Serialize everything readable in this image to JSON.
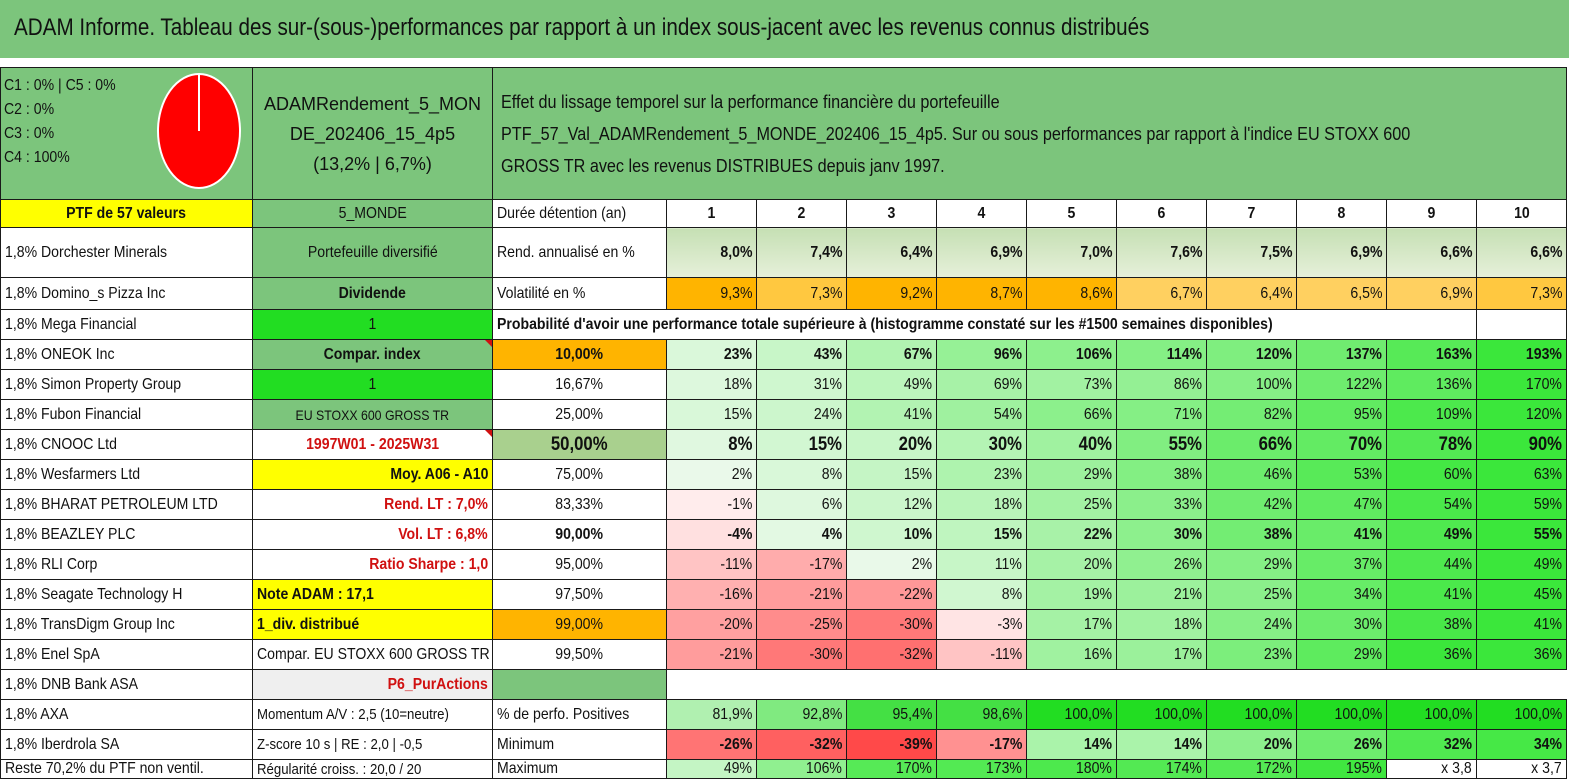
{
  "title": "ADAM Informe. Tableau des sur-(sous-)performances par rapport à un index sous-jacent avec les revenus connus distribués",
  "pie": {
    "lines": [
      "C1 : 0% | C5 : 0%",
      "C2 : 0%",
      "C3 : 0%",
      "C4 : 100%"
    ],
    "color": "#ff0000"
  },
  "portfolio": {
    "name_line1": "ADAMRendement_5_MON",
    "name_line2": "DE_202406_15_4p5",
    "name_line3": "(13,2% | 6,7%)"
  },
  "description": {
    "line1": "Effet du lissage temporel sur la performance financière du portefeuille",
    "line2": "PTF_57_Val_ADAMRendement_5_MONDE_202406_15_4p5. Sur ou sous performances par rapport à l'indice EU STOXX 600",
    "line3": "GROSS TR avec les revenus DISTRIBUES depuis janv 1997."
  },
  "header": {
    "ptf": "PTF de 57 valeurs",
    "zone": "5_MONDE",
    "duration_label": "Durée détention (an)",
    "years": [
      "1",
      "2",
      "3",
      "4",
      "5",
      "6",
      "7",
      "8",
      "9",
      "10"
    ]
  },
  "holdings": [
    "1,8% Dorchester Minerals",
    "1,8% Domino_s Pizza Inc",
    "1,8% Mega Financial",
    "1,8% ONEOK Inc",
    "1,8% Simon Property Group",
    "1,8% Fubon Financial",
    "1,8% CNOOC Ltd",
    "1,8% Wesfarmers Ltd",
    "1,8% BHARAT PETROLEUM LTD",
    "1,8% BEAZLEY PLC",
    "1,8% RLI Corp",
    "1,8% Seagate Technology H",
    "1,8% TransDigm Group Inc",
    "1,8% Enel SpA",
    "1,8% DNB Bank ASA",
    "1,8% AXA",
    "1,8% Iberdrola SA",
    "Reste 70,2% du PTF non ventil."
  ],
  "info": [
    "Portefeuille diversifié",
    "Dividende",
    "1",
    "Compar. index",
    "1",
    "EU STOXX 600 GROSS TR",
    "1997W01 - 2025W31",
    "Moy. A06 - A10",
    "Rend. LT : 7,0%",
    "Vol. LT : 6,8%",
    "Ratio Sharpe : 1,0",
    "Note ADAM : 17,1",
    "1_div. distribué",
    "Compar. EU STOXX 600 GROSS TR",
    "P6_PurActions",
    "Momentum A/V : 2,5 (10=neutre)",
    "Z-score 10 s | RE : 2,0 | -0,5",
    "Régularité croiss. : 20,0 / 20"
  ],
  "rend": {
    "label": "Rend. annualisé en %",
    "values": [
      "8,0%",
      "7,4%",
      "6,4%",
      "6,9%",
      "7,0%",
      "7,6%",
      "7,5%",
      "6,9%",
      "6,6%",
      "6,6%"
    ]
  },
  "vol": {
    "label": "Volatilité en %",
    "values": [
      "9,3%",
      "7,3%",
      "9,2%",
      "8,7%",
      "8,6%",
      "6,7%",
      "6,4%",
      "6,5%",
      "6,9%",
      "7,3%"
    ]
  },
  "prob_header": "Probabilité d'avoir une performance totale supérieure à (histogramme constaté sur les #1500 semaines disponibles)",
  "prob_rows": [
    {
      "p": "10,00%",
      "v": [
        "23%",
        "43%",
        "67%",
        "96%",
        "106%",
        "114%",
        "120%",
        "137%",
        "163%",
        "193%"
      ]
    },
    {
      "p": "16,67%",
      "v": [
        "18%",
        "31%",
        "49%",
        "69%",
        "73%",
        "86%",
        "100%",
        "122%",
        "136%",
        "170%"
      ]
    },
    {
      "p": "25,00%",
      "v": [
        "15%",
        "24%",
        "41%",
        "54%",
        "66%",
        "71%",
        "82%",
        "95%",
        "109%",
        "120%"
      ]
    },
    {
      "p": "50,00%",
      "v": [
        "8%",
        "15%",
        "20%",
        "30%",
        "40%",
        "55%",
        "66%",
        "70%",
        "78%",
        "90%"
      ]
    },
    {
      "p": "75,00%",
      "v": [
        "2%",
        "8%",
        "15%",
        "23%",
        "29%",
        "38%",
        "46%",
        "53%",
        "60%",
        "63%"
      ]
    },
    {
      "p": "83,33%",
      "v": [
        "-1%",
        "6%",
        "12%",
        "18%",
        "25%",
        "33%",
        "42%",
        "47%",
        "54%",
        "59%"
      ]
    },
    {
      "p": "90,00%",
      "v": [
        "-4%",
        "4%",
        "10%",
        "15%",
        "22%",
        "30%",
        "38%",
        "41%",
        "49%",
        "55%"
      ]
    },
    {
      "p": "95,00%",
      "v": [
        "-11%",
        "-17%",
        "2%",
        "11%",
        "20%",
        "26%",
        "29%",
        "37%",
        "44%",
        "49%"
      ]
    },
    {
      "p": "97,50%",
      "v": [
        "-16%",
        "-21%",
        "-22%",
        "8%",
        "19%",
        "21%",
        "25%",
        "34%",
        "41%",
        "45%"
      ]
    },
    {
      "p": "99,00%",
      "v": [
        "-20%",
        "-25%",
        "-30%",
        "-3%",
        "17%",
        "18%",
        "24%",
        "30%",
        "38%",
        "41%"
      ]
    },
    {
      "p": "99,50%",
      "v": [
        "-21%",
        "-30%",
        "-32%",
        "-11%",
        "16%",
        "17%",
        "23%",
        "29%",
        "36%",
        "36%"
      ]
    }
  ],
  "positives": {
    "label": "% de perfo. Positives",
    "values": [
      "81,9%",
      "92,8%",
      "95,4%",
      "98,6%",
      "100,0%",
      "100,0%",
      "100,0%",
      "100,0%",
      "100,0%",
      "100,0%"
    ]
  },
  "minimum": {
    "label": "Minimum",
    "values": [
      "-26%",
      "-32%",
      "-39%",
      "-17%",
      "14%",
      "14%",
      "20%",
      "26%",
      "32%",
      "34%"
    ]
  },
  "maximum": {
    "label": "Maximum",
    "values": [
      "49%",
      "106%",
      "170%",
      "173%",
      "180%",
      "174%",
      "172%",
      "195%",
      "x 3,8",
      "x 3,7"
    ]
  }
}
